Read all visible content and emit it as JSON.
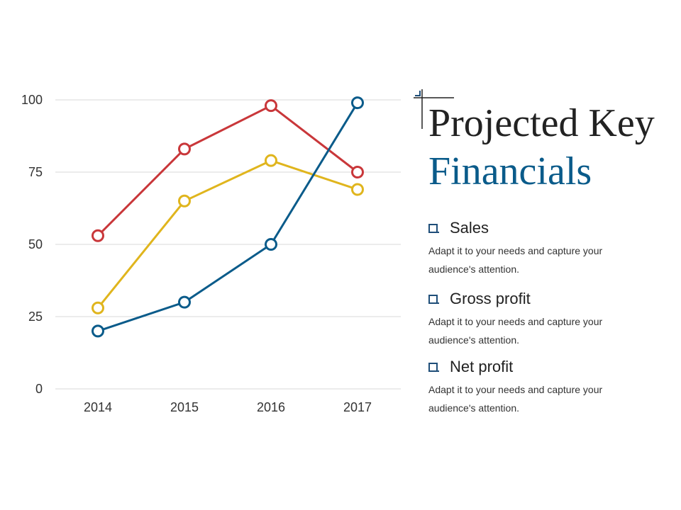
{
  "chart_data": {
    "type": "line",
    "categories": [
      "2014",
      "2015",
      "2016",
      "2017"
    ],
    "series": [
      {
        "values": [
          53,
          83,
          98,
          75
        ],
        "color": "#c9373a"
      },
      {
        "values": [
          28,
          65,
          79,
          69
        ],
        "color": "#e0b51d"
      },
      {
        "values": [
          20,
          30,
          50,
          99
        ],
        "color": "#0a5b8a"
      }
    ],
    "yticks": [
      0,
      25,
      50,
      75,
      100
    ],
    "ylim": [
      0,
      100
    ],
    "grid": true,
    "marker": "open-circle"
  },
  "title": {
    "line1": "Projected Key",
    "line2": "Financials",
    "line1_color": "#222222",
    "line2_color": "#0a5b8a"
  },
  "legend": [
    {
      "name": "Sales",
      "description": "Adapt it to your needs and capture your audience's attention.",
      "icon": "checkbox-icon"
    },
    {
      "name": "Gross profit",
      "description": "Adapt it to your needs and capture your audience's attention.",
      "icon": "checkbox-icon"
    },
    {
      "name": "Net profit",
      "description": "Adapt it to your needs and capture your audience's attention.",
      "icon": "checkbox-icon"
    }
  ]
}
